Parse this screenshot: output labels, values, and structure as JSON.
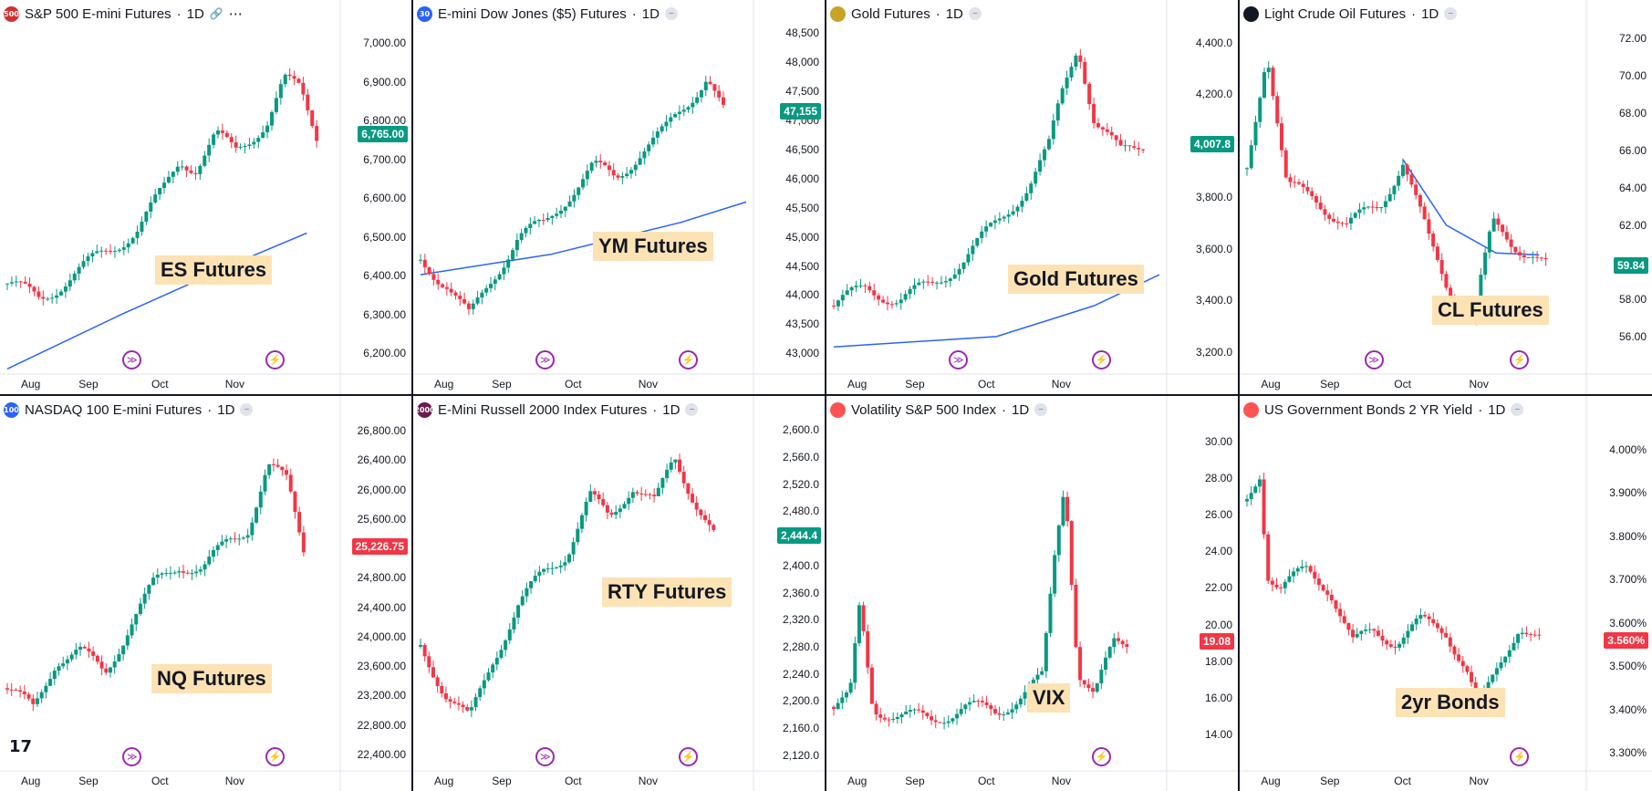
{
  "chart_data": [
    {
      "type": "line",
      "title": "S&P 500 E-mini Futures",
      "timeframe": "1D",
      "symbol_badge": "500",
      "badge_color": "#d32f2f",
      "header_icons": [
        "link-icon",
        "more-icon"
      ],
      "last_price": "6,765.00",
      "price_color": "#089981",
      "annotation": "ES Futures",
      "x_ticks": [
        "Aug",
        "Sep",
        "Oct",
        "Nov"
      ],
      "y_ticks": [
        "7,000.00",
        "6,900.00",
        "6,800.00",
        "6,700.00",
        "6,600.00",
        "6,500.00",
        "6,400.00",
        "6,300.00",
        "6,200.00"
      ],
      "ylim": [
        6170,
        7040
      ],
      "ma_line": [
        [
          0,
          6160
        ],
        [
          0.35,
          6300
        ],
        [
          0.75,
          6450
        ],
        [
          0.92,
          6510
        ]
      ],
      "x": [
        0,
        0.1,
        0.2,
        0.3,
        0.4,
        0.48,
        0.53,
        0.58,
        0.64,
        0.7,
        0.8,
        0.85,
        0.9,
        0.95
      ],
      "series": [
        {
          "values": [
            6380,
            6340,
            6400,
            6460,
            6520,
            6620,
            6700,
            6680,
            6760,
            6720,
            6800,
            6900,
            6880,
            6765
          ]
        }
      ]
    },
    {
      "type": "line",
      "title": "E-mini Dow Jones ($5) Futures",
      "timeframe": "1D",
      "symbol_badge": "30",
      "badge_color": "#2962ff",
      "last_price": "47,155",
      "price_color": "#089981",
      "annotation": "YM Futures",
      "x_ticks": [
        "Aug",
        "Sep",
        "Oct",
        "Nov"
      ],
      "y_ticks": [
        "48,500",
        "48,000",
        "47,500",
        "47,000",
        "46,500",
        "46,000",
        "45,500",
        "45,000",
        "44,500",
        "44,000",
        "43,500",
        "43,000"
      ],
      "ylim": [
        42800,
        48600
      ],
      "ma_line": [
        [
          0,
          44350
        ],
        [
          0.4,
          44700
        ],
        [
          0.8,
          45250
        ],
        [
          1,
          45600
        ]
      ],
      "x": [
        0,
        0.08,
        0.15,
        0.22,
        0.3,
        0.38,
        0.45,
        0.53,
        0.6,
        0.68,
        0.75,
        0.82,
        0.88,
        0.93
      ],
      "series": [
        {
          "values": [
            44600,
            44200,
            43600,
            44300,
            45000,
            45200,
            45700,
            46200,
            46000,
            46500,
            46800,
            47300,
            47800,
            47155
          ]
        }
      ]
    },
    {
      "type": "line",
      "title": "Gold Futures",
      "timeframe": "1D",
      "symbol_badge": "",
      "badge_color": "#c9a227",
      "last_price": "4,007.8",
      "price_color": "#089981",
      "annotation": "Gold Futures",
      "x_ticks": [
        "Aug",
        "Sep",
        "Oct",
        "Nov"
      ],
      "y_ticks": [
        "4,400.0",
        "4,200.0",
        "4,000.0",
        "3,800.0",
        "3,600.0",
        "3,400.0",
        "3,200.0"
      ],
      "ylim": [
        3150,
        4460
      ],
      "ma_line": [
        [
          0,
          3220
        ],
        [
          0.5,
          3260
        ],
        [
          0.8,
          3380
        ],
        [
          1,
          3500
        ]
      ],
      "x": [
        0,
        0.1,
        0.2,
        0.3,
        0.4,
        0.5,
        0.6,
        0.66,
        0.7,
        0.75,
        0.8,
        0.88,
        0.95
      ],
      "series": [
        {
          "values": [
            3380,
            3450,
            3400,
            3460,
            3560,
            3700,
            3850,
            3990,
            4200,
            4400,
            4100,
            3970,
            4008
          ]
        }
      ]
    },
    {
      "type": "line",
      "title": "Light Crude Oil Futures",
      "timeframe": "1D",
      "symbol_badge": "",
      "badge_color": "#131722",
      "last_price": "59.84",
      "price_color": "#089981",
      "annotation": "CL Futures",
      "x_ticks": [
        "Aug",
        "Sep",
        "Oct",
        "Nov"
      ],
      "y_ticks": [
        "72.00",
        "70.00",
        "68.00",
        "66.00",
        "64.00",
        "62.00",
        "60.00",
        "58.00",
        "56.00"
      ],
      "ylim": [
        54.5,
        72.6
      ],
      "ma_line": [
        [
          0.47,
          65.5
        ],
        [
          0.6,
          62
        ],
        [
          0.75,
          60.5
        ],
        [
          0.88,
          60.4
        ]
      ],
      "x": [
        0,
        0.06,
        0.12,
        0.2,
        0.3,
        0.4,
        0.47,
        0.55,
        0.62,
        0.68,
        0.74,
        0.8,
        0.86,
        0.9
      ],
      "series": [
        {
          "values": [
            65,
            71.5,
            64,
            63.5,
            62,
            63,
            65.5,
            61,
            58,
            57,
            62,
            61,
            60.5,
            59.84
          ]
        }
      ]
    },
    {
      "type": "line",
      "title": "NASDAQ 100 E-mini Futures",
      "timeframe": "1D",
      "symbol_badge": "100",
      "badge_color": "#2962ff",
      "last_price": "25,226.75",
      "price_color": "#f23645",
      "annotation": "NQ Futures",
      "x_ticks": [
        "Aug",
        "Sep",
        "Oct",
        "Nov"
      ],
      "y_ticks": [
        "26,800.00",
        "26,400.00",
        "26,000.00",
        "25,600.00",
        "25,200.00",
        "24,800.00",
        "24,400.00",
        "24,000.00",
        "23,600.00",
        "23,200.00",
        "22,800.00",
        "22,400.00"
      ],
      "ylim": [
        22300,
        26900
      ],
      "x": [
        0,
        0.08,
        0.15,
        0.22,
        0.3,
        0.38,
        0.45,
        0.53,
        0.6,
        0.68,
        0.74,
        0.8,
        0.86,
        0.91
      ],
      "series": [
        {
          "values": [
            23300,
            23000,
            23700,
            23800,
            23500,
            24200,
            24700,
            25000,
            24900,
            25300,
            25500,
            26300,
            26100,
            25227
          ]
        }
      ]
    },
    {
      "type": "line",
      "title": "E-Mini Russell 2000 Index Futures",
      "timeframe": "1D",
      "symbol_badge": "2000",
      "badge_color": "#6a1b4d",
      "last_price": "2,444.4",
      "price_color": "#089981",
      "annotation": "RTY Futures",
      "x_ticks": [
        "Aug",
        "Sep",
        "Oct",
        "Nov"
      ],
      "y_ticks": [
        "2,600.0",
        "2,560.0",
        "2,520.0",
        "2,480.0",
        "2,440.0",
        "2,400.0",
        "2,360.0",
        "2,320.0",
        "2,280.0",
        "2,240.0",
        "2,200.0",
        "2,160.0",
        "2,120.0"
      ],
      "ylim": [
        2110,
        2610
      ],
      "x": [
        0,
        0.08,
        0.15,
        0.22,
        0.3,
        0.38,
        0.45,
        0.52,
        0.58,
        0.65,
        0.72,
        0.78,
        0.84,
        0.9
      ],
      "series": [
        {
          "values": [
            2280,
            2210,
            2170,
            2260,
            2340,
            2390,
            2420,
            2500,
            2470,
            2520,
            2490,
            2560,
            2500,
            2444
          ]
        }
      ]
    },
    {
      "type": "line",
      "title": "Volatility S&P 500 Index",
      "timeframe": "1D",
      "symbol_badge": "",
      "badge_color": "#ff5252",
      "last_price": "19.08",
      "price_color": "#f23645",
      "annotation": "VIX",
      "x_ticks": [
        "Aug",
        "Sep",
        "Oct",
        "Nov"
      ],
      "y_ticks": [
        "30.00",
        "28.00",
        "26.00",
        "24.00",
        "22.00",
        "20.00",
        "18.00",
        "16.00",
        "14.00"
      ],
      "ylim": [
        12.5,
        31
      ],
      "x": [
        0,
        0.05,
        0.08,
        0.12,
        0.2,
        0.3,
        0.4,
        0.5,
        0.6,
        0.64,
        0.68,
        0.71,
        0.75,
        0.8,
        0.86,
        0.9
      ],
      "series": [
        {
          "values": [
            15.5,
            16,
            21,
            15.5,
            15,
            14.8,
            15.5,
            15.2,
            16.5,
            17,
            24,
            28,
            17.5,
            16,
            19,
            19.08
          ]
        }
      ]
    },
    {
      "type": "line",
      "title": "US Government Bonds 2 YR Yield",
      "timeframe": "1D",
      "symbol_badge": "",
      "badge_color": "#ff5252",
      "last_price": "3.560%",
      "price_color": "#f23645",
      "annotation": "2yr Bonds",
      "x_ticks": [
        "Aug",
        "Sep",
        "Oct",
        "Nov"
      ],
      "y_ticks": [
        "4.000%",
        "3.900%",
        "3.800%",
        "3.700%",
        "3.600%",
        "3.500%",
        "3.400%",
        "3.300%"
      ],
      "ylim": [
        3.28,
        4.06
      ],
      "x": [
        0,
        0.04,
        0.06,
        0.1,
        0.18,
        0.25,
        0.32,
        0.38,
        0.45,
        0.52,
        0.6,
        0.66,
        0.7,
        0.76,
        0.82,
        0.88
      ],
      "series": [
        {
          "values": [
            3.88,
            3.95,
            3.72,
            3.68,
            3.72,
            3.68,
            3.55,
            3.58,
            3.56,
            3.6,
            3.58,
            3.5,
            3.4,
            3.5,
            3.6,
            3.56
          ]
        }
      ]
    }
  ],
  "ui": {
    "tradingview_logo": "17",
    "flag_icons": [
      "us-flag-icon",
      "us-flag-icon"
    ]
  }
}
